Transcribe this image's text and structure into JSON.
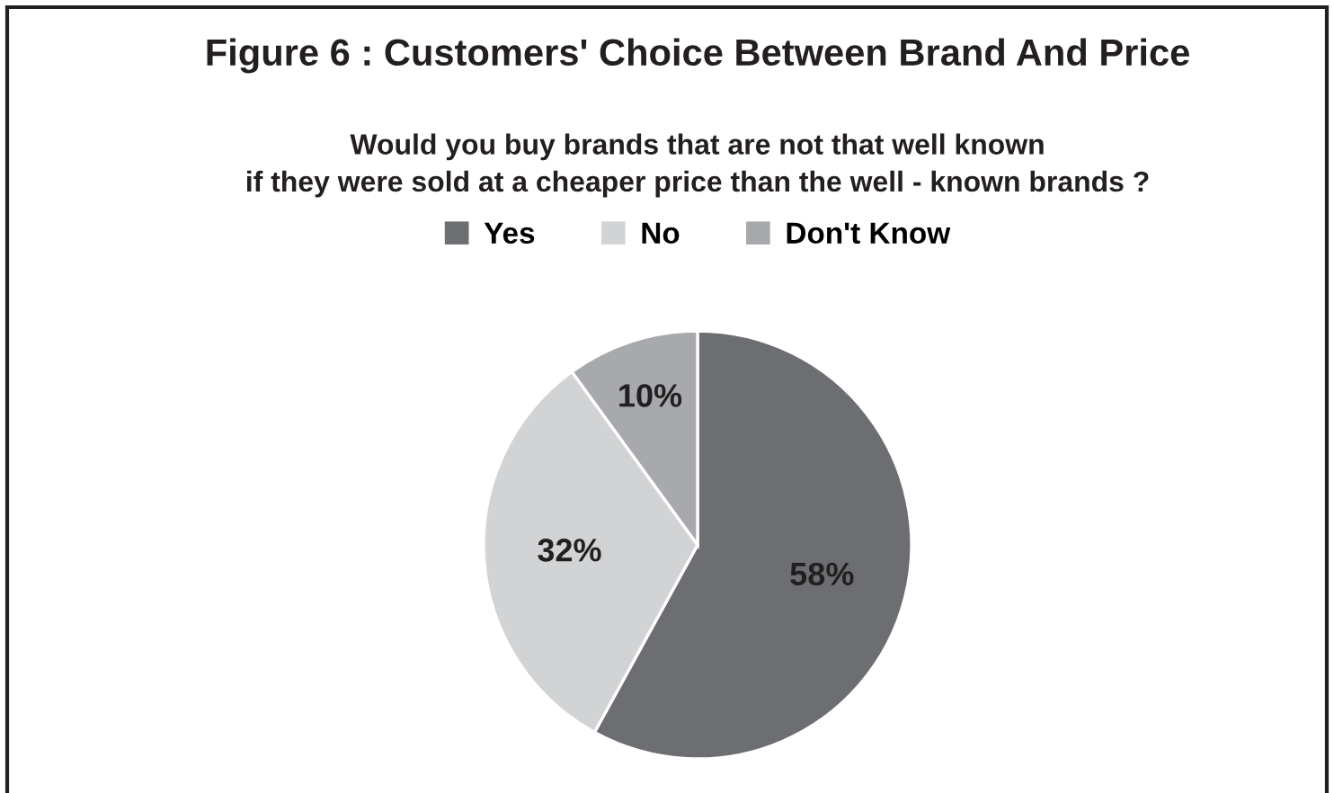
{
  "chart_data": {
    "type": "pie",
    "title": "Figure 6 : Customers' Choice Between Brand And Price",
    "subtitle": "Would you buy brands that are not that well known\nif they were sold at a cheaper price than the well - known brands ?",
    "categories": [
      "Yes",
      "No",
      "Don't Know"
    ],
    "values": [
      58,
      32,
      10
    ],
    "colors": [
      "#6d6e71",
      "#d1d3d4",
      "#a7a9ac"
    ],
    "value_labels": [
      "58%",
      "32%",
      "10%"
    ],
    "legend": "top"
  }
}
